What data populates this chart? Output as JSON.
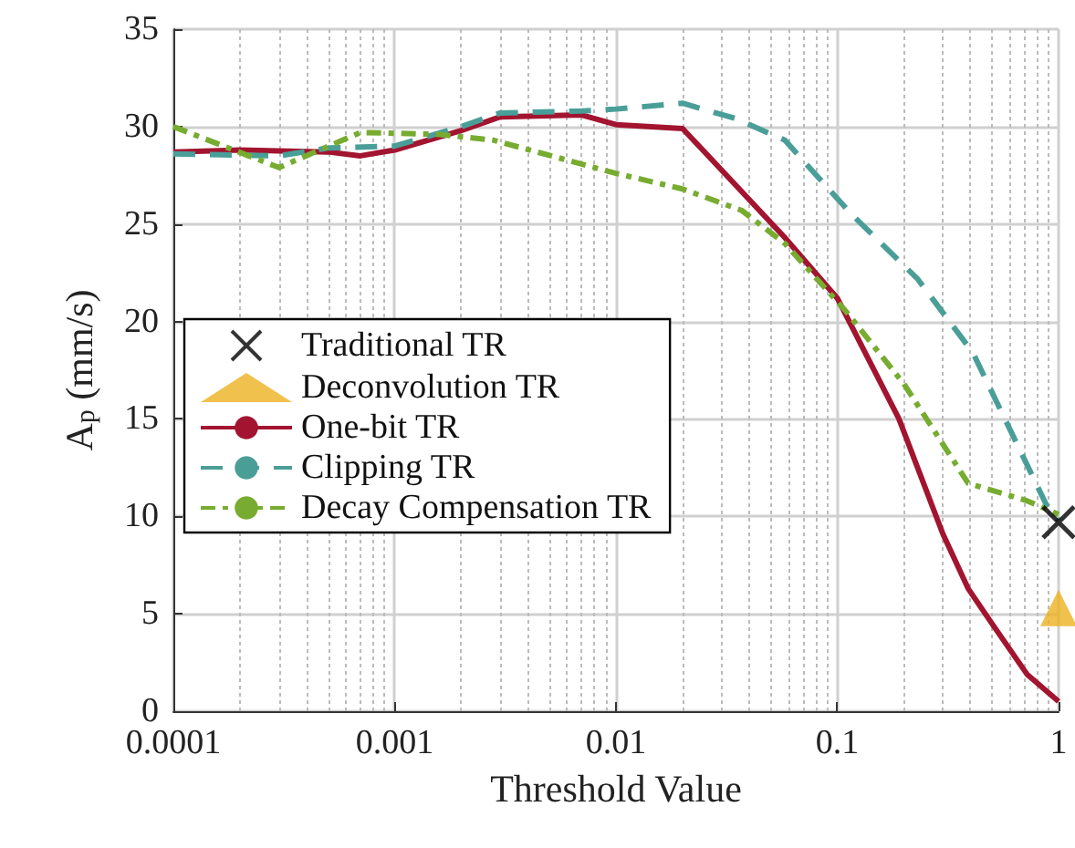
{
  "chart_data": {
    "type": "line",
    "xlabel": "Threshold Value",
    "ylabel": "A$_{p}$ (mm/s)",
    "log": "x",
    "xlim": [
      0.0001,
      1
    ],
    "xticks": [
      0.0001,
      0.001,
      0.01,
      0.1,
      1
    ],
    "ylim": [
      0,
      35
    ],
    "yticks": [
      0,
      5,
      10,
      15,
      20,
      25,
      30,
      35
    ],
    "grid": true,
    "legend": "left",
    "series": [
      {
        "name": "Traditional TR",
        "type": "scatter",
        "marker": "cross",
        "color": "#000000",
        "x": [
          1
        ],
        "values": [
          9.7
        ]
      },
      {
        "name": "Deconvolution TR",
        "type": "scatter",
        "marker": "triangle",
        "color": "#edb120",
        "x": [
          1
        ],
        "values": [
          5.3
        ]
      },
      {
        "name": "One-bit TR",
        "color": "#a2142f",
        "marker": "none",
        "line_style": "solid",
        "x": [
          0.0001,
          0.0002,
          0.0005,
          0.0007,
          0.001,
          0.002,
          0.003,
          0.007,
          0.01,
          0.02,
          0.058,
          0.1,
          0.19,
          0.3,
          0.39,
          0.5,
          0.72,
          1
        ],
        "values": [
          28.7,
          28.8,
          28.7,
          28.5,
          28.8,
          29.8,
          30.5,
          30.6,
          30.1,
          29.9,
          24.3,
          21.2,
          15.0,
          9.1,
          6.3,
          4.5,
          1.9,
          0.5
        ]
      },
      {
        "name": "Clipping TR",
        "color": "#4a9e98",
        "marker": "none",
        "line_style": "dashed",
        "x": [
          0.0001,
          0.0003,
          0.0005,
          0.001,
          0.002,
          0.003,
          0.007,
          0.01,
          0.02,
          0.035,
          0.058,
          0.082,
          0.116,
          0.23,
          0.41,
          0.88,
          1
        ],
        "values": [
          28.6,
          28.5,
          28.9,
          29.0,
          30.0,
          30.7,
          30.8,
          30.9,
          31.2,
          30.4,
          29.3,
          27.4,
          25.5,
          22.2,
          18.4,
          10.6,
          9.8
        ]
      },
      {
        "name": "Decay Compensation TR",
        "color": "#77ac30",
        "marker": "none",
        "line_style": "dotted",
        "x": [
          0.0001,
          0.0003,
          0.0007,
          0.0016,
          0.0028,
          0.01,
          0.02,
          0.037,
          0.058,
          0.108,
          0.2,
          0.39,
          0.72,
          1
        ],
        "values": [
          30.0,
          27.9,
          29.7,
          29.6,
          29.3,
          27.6,
          26.8,
          25.7,
          24.0,
          20.6,
          16.8,
          11.7,
          10.8,
          10.1
        ]
      }
    ]
  }
}
